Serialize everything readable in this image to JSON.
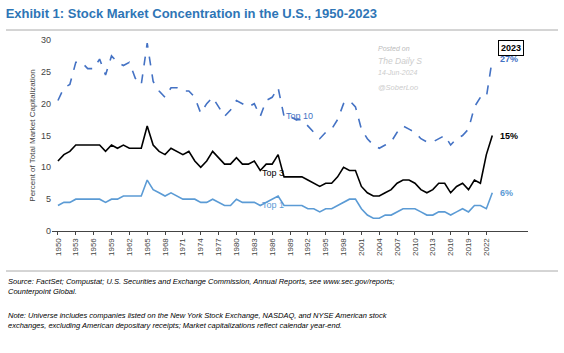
{
  "chart_data": {
    "type": "line",
    "title": "Exhibit 1: Stock Market Concentration in the U.S., 1950-2023",
    "title_color": "#2E75B6",
    "ylabel": "Percent of Total Market Capitalization",
    "x": [
      1950,
      1951,
      1952,
      1953,
      1954,
      1955,
      1956,
      1957,
      1958,
      1959,
      1960,
      1961,
      1962,
      1963,
      1964,
      1965,
      1966,
      1967,
      1968,
      1969,
      1970,
      1971,
      1972,
      1973,
      1974,
      1975,
      1976,
      1977,
      1978,
      1979,
      1980,
      1981,
      1982,
      1983,
      1984,
      1985,
      1986,
      1987,
      1988,
      1989,
      1990,
      1991,
      1992,
      1993,
      1994,
      1995,
      1996,
      1997,
      1998,
      1999,
      2000,
      2001,
      2002,
      2003,
      2004,
      2005,
      2006,
      2007,
      2008,
      2009,
      2010,
      2011,
      2012,
      2013,
      2014,
      2015,
      2016,
      2017,
      2018,
      2019,
      2020,
      2021,
      2022,
      2023
    ],
    "series": [
      {
        "name": "Top 10",
        "color": "#4472C4",
        "line_style": "dashed",
        "values": [
          20.5,
          22.5,
          23.0,
          26.5,
          26.5,
          25.5,
          25.5,
          27.0,
          24.5,
          27.5,
          26.5,
          26.0,
          26.5,
          24.0,
          23.0,
          29.5,
          23.5,
          22.0,
          21.0,
          22.5,
          22.5,
          22.0,
          22.0,
          21.0,
          18.5,
          20.0,
          21.0,
          19.5,
          18.0,
          19.0,
          20.5,
          20.0,
          19.5,
          20.0,
          18.0,
          20.5,
          21.0,
          22.5,
          18.0,
          18.0,
          17.5,
          17.5,
          16.5,
          15.5,
          14.5,
          15.5,
          16.0,
          17.5,
          20.0,
          20.5,
          19.5,
          16.0,
          14.5,
          13.5,
          13.0,
          13.5,
          14.0,
          15.5,
          16.5,
          16.0,
          15.5,
          14.5,
          14.0,
          14.0,
          14.5,
          15.0,
          13.5,
          14.5,
          15.0,
          16.0,
          19.5,
          21.0,
          21.0,
          27.0
        ],
        "value_labels": [
          null,
          null,
          null,
          null,
          null,
          null,
          null,
          null,
          null,
          null,
          null,
          null,
          null,
          null,
          null,
          null,
          null,
          null,
          null,
          null,
          null,
          null,
          null,
          null,
          null,
          null,
          null,
          null,
          null,
          null,
          null,
          null,
          null,
          null,
          null,
          null,
          null,
          null,
          null,
          null,
          null,
          null,
          null,
          null,
          null,
          null,
          null,
          null,
          null,
          null,
          null,
          null,
          null,
          null,
          null,
          null,
          null,
          null,
          null,
          null,
          null,
          null,
          null,
          null,
          null,
          null,
          null,
          null,
          null,
          null,
          null,
          null,
          null,
          "27%"
        ]
      },
      {
        "name": "Top 3",
        "color": "#000000",
        "line_style": "solid",
        "values": [
          11.0,
          12.0,
          12.5,
          13.5,
          13.5,
          13.5,
          13.5,
          13.5,
          12.5,
          13.5,
          13.0,
          13.5,
          13.0,
          13.0,
          13.0,
          16.5,
          13.5,
          12.5,
          12.0,
          13.0,
          12.5,
          12.0,
          12.5,
          11.0,
          10.0,
          11.0,
          12.5,
          11.5,
          10.5,
          10.5,
          11.5,
          10.5,
          10.5,
          11.0,
          9.5,
          10.5,
          10.5,
          12.0,
          8.5,
          8.5,
          8.5,
          8.5,
          8.0,
          7.5,
          7.0,
          7.5,
          7.5,
          8.5,
          10.0,
          9.5,
          9.5,
          7.0,
          6.0,
          5.5,
          5.5,
          6.0,
          6.5,
          7.5,
          8.0,
          8.0,
          7.5,
          6.5,
          6.0,
          6.5,
          7.5,
          7.5,
          6.0,
          7.0,
          7.5,
          6.5,
          8.0,
          7.5,
          12.0,
          15.0
        ],
        "value_labels": [
          null,
          null,
          null,
          null,
          null,
          null,
          null,
          null,
          null,
          null,
          null,
          null,
          null,
          null,
          null,
          null,
          null,
          null,
          null,
          null,
          null,
          null,
          null,
          null,
          null,
          null,
          null,
          null,
          null,
          null,
          null,
          null,
          null,
          null,
          null,
          null,
          null,
          null,
          null,
          null,
          null,
          null,
          null,
          null,
          null,
          null,
          null,
          null,
          null,
          null,
          null,
          null,
          null,
          null,
          null,
          null,
          null,
          null,
          null,
          null,
          null,
          null,
          null,
          null,
          null,
          null,
          null,
          null,
          null,
          null,
          null,
          null,
          null,
          "15%"
        ]
      },
      {
        "name": "Top 1",
        "color": "#5B9BD5",
        "line_style": "solid",
        "values": [
          4.0,
          4.5,
          4.5,
          5.0,
          5.0,
          5.0,
          5.0,
          5.0,
          4.5,
          5.0,
          5.0,
          5.5,
          5.5,
          5.5,
          5.5,
          8.0,
          6.5,
          6.0,
          5.5,
          6.0,
          5.5,
          5.0,
          5.0,
          5.0,
          4.5,
          4.5,
          5.0,
          4.5,
          4.0,
          4.0,
          5.0,
          4.5,
          4.5,
          4.5,
          4.0,
          4.5,
          5.0,
          5.5,
          4.0,
          4.0,
          4.0,
          4.0,
          3.5,
          3.5,
          3.0,
          3.5,
          3.5,
          4.0,
          4.5,
          5.0,
          5.0,
          3.5,
          2.5,
          2.0,
          2.0,
          2.5,
          2.5,
          3.0,
          3.5,
          3.5,
          3.5,
          3.0,
          2.5,
          2.5,
          3.0,
          3.0,
          2.5,
          3.0,
          3.5,
          3.0,
          4.0,
          4.0,
          3.5,
          6.0
        ],
        "value_labels": [
          null,
          null,
          null,
          null,
          null,
          null,
          null,
          null,
          null,
          null,
          null,
          null,
          null,
          null,
          null,
          null,
          null,
          null,
          null,
          null,
          null,
          null,
          null,
          null,
          null,
          null,
          null,
          null,
          null,
          null,
          null,
          null,
          null,
          null,
          null,
          null,
          null,
          null,
          null,
          null,
          null,
          null,
          null,
          null,
          null,
          null,
          null,
          null,
          null,
          null,
          null,
          null,
          null,
          null,
          null,
          null,
          null,
          null,
          null,
          null,
          null,
          null,
          null,
          null,
          null,
          null,
          null,
          null,
          null,
          null,
          null,
          null,
          null,
          "6%"
        ]
      }
    ],
    "annotations": [
      "2023",
      "Posted on",
      "The Daily S",
      "14-Jun-2024",
      "@SoberLoo"
    ],
    "source": "Source: FactSet; Compustat; U.S. Securities and Exchange Commission, Annual Reports, see www.sec.gov/reports;\nCounterpoint Global.",
    "note": "Note: Universe includes companies listed on the New York Stock Exchange, NASDAQ, and NYSE American stock\nexchanges, excluding American depositary receipts; Market capitalizations reflect calendar year-end.",
    "xlim": [
      1949,
      2029
    ],
    "xticks": [
      1950,
      1953,
      1956,
      1959,
      1962,
      1965,
      1968,
      1971,
      1974,
      1977,
      1980,
      1983,
      1986,
      1989,
      1992,
      1995,
      1998,
      2001,
      2004,
      2007,
      2010,
      2013,
      2016,
      2019,
      2022
    ],
    "ylim": [
      0,
      30
    ],
    "yticks": [
      0,
      5,
      10,
      15,
      20,
      25,
      30
    ],
    "grid": false
  }
}
